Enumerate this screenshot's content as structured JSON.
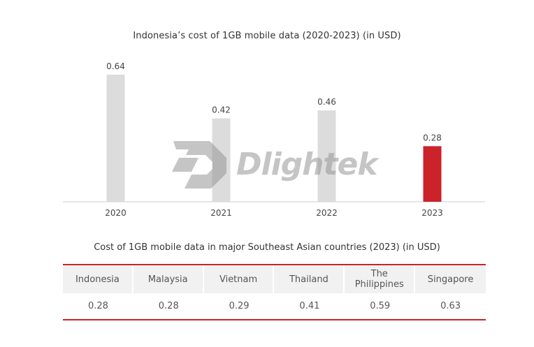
{
  "chart_data": {
    "type": "bar",
    "title": "Indonesia’s cost of 1GB mobile data (2020-2023) (in USD)",
    "categories": [
      "2020",
      "2021",
      "2022",
      "2023"
    ],
    "values": [
      0.64,
      0.42,
      0.46,
      0.28
    ],
    "data_labels": [
      "0.64",
      "0.42",
      "0.46",
      "0.28"
    ],
    "highlight_index": 3,
    "ylim": [
      0,
      0.64
    ],
    "y_axis_visible": false,
    "grid": false,
    "colors": {
      "default": "#dcdcdc",
      "highlight": "#cc2229",
      "axis": "#cccccc"
    }
  },
  "watermark": {
    "text": "Dlightek",
    "logo_letter": "D"
  },
  "table": {
    "title": "Cost of 1GB mobile data in major Southeast Asian countries (2023) (in USD)",
    "headers": [
      {
        "line1": "Indonesia",
        "line2": ""
      },
      {
        "line1": "Malaysia",
        "line2": ""
      },
      {
        "line1": "Vietnam",
        "line2": ""
      },
      {
        "line1": "Thailand",
        "line2": ""
      },
      {
        "line1": "The",
        "line2": "Philippines"
      },
      {
        "line1": "Singapore",
        "line2": ""
      }
    ],
    "values": [
      "0.28",
      "0.28",
      "0.29",
      "0.41",
      "0.59",
      "0.63"
    ],
    "accent_color": "#cc2229"
  }
}
